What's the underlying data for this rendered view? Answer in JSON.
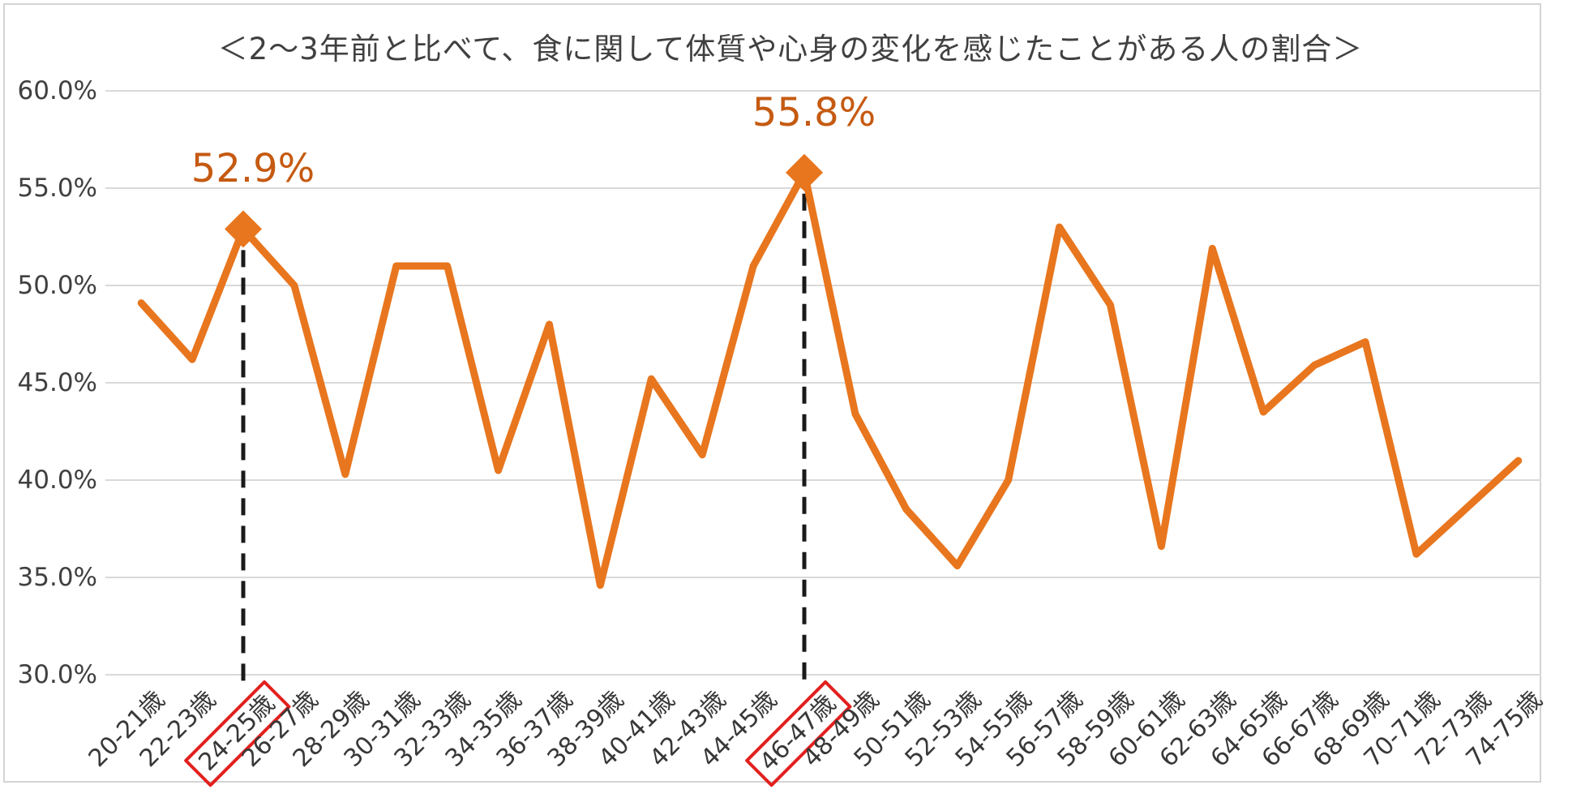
{
  "chart_data": {
    "type": "line",
    "title": "＜2～3年前と比べて、食に関して体質や心身の変化を感じたことがある人の割合＞",
    "xlabel": "",
    "ylabel": "",
    "categories": [
      "20-21歳",
      "22-23歳",
      "24-25歳",
      "26-27歳",
      "28-29歳",
      "30-31歳",
      "32-33歳",
      "34-35歳",
      "36-37歳",
      "38-39歳",
      "40-41歳",
      "42-43歳",
      "44-45歳",
      "46-47歳",
      "48-49歳",
      "50-51歳",
      "52-53歳",
      "54-55歳",
      "56-57歳",
      "58-59歳",
      "60-61歳",
      "62-63歳",
      "64-65歳",
      "66-67歳",
      "68-69歳",
      "70-71歳",
      "72-73歳",
      "74-75歳"
    ],
    "values": [
      49.1,
      46.2,
      52.9,
      50.0,
      40.3,
      51.0,
      51.0,
      40.5,
      48.0,
      34.6,
      45.2,
      41.3,
      51.0,
      55.8,
      43.4,
      38.5,
      35.6,
      40.0,
      53.0,
      49.0,
      36.6,
      51.9,
      43.5,
      45.9,
      47.1,
      36.2,
      38.6,
      41.0
    ],
    "y_axis": {
      "min": 30,
      "max": 60,
      "step": 5,
      "ticks": [
        {
          "label": "60.0%",
          "value": 60
        },
        {
          "label": "55.0%",
          "value": 55
        },
        {
          "label": "50.0%",
          "value": 50
        },
        {
          "label": "45.0%",
          "value": 45
        },
        {
          "label": "40.0%",
          "value": 40
        },
        {
          "label": "35.0%",
          "value": 35
        },
        {
          "label": "30.0%",
          "value": 30
        }
      ]
    },
    "annotations": [
      {
        "index": 2,
        "category": "24-25歳",
        "label": "52.9%",
        "value": 52.9
      },
      {
        "index": 13,
        "category": "46-47歳",
        "label": "55.8%",
        "value": 55.8
      }
    ],
    "highlight_indices": [
      2,
      13
    ],
    "grid": true,
    "legend": false,
    "colors": {
      "line": "#e8761e",
      "marker": "#e8761e",
      "data_label": "#c55a11",
      "highlight_box": "#e2201e",
      "gridline": "#d9d9d9",
      "axis_text": "#404040",
      "dashed_line": "#1a1a1a",
      "frame_border": "#d4d4d4"
    }
  }
}
